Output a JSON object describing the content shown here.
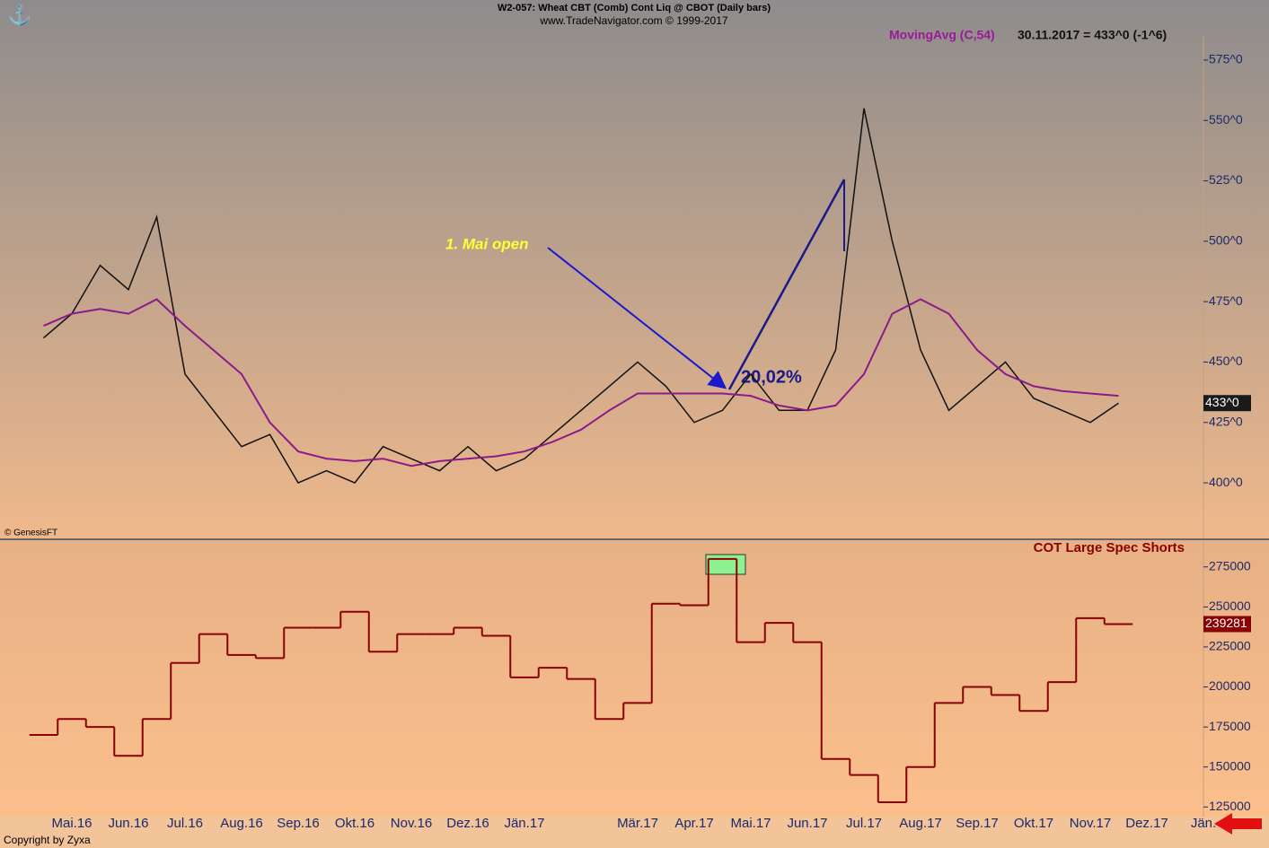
{
  "chart_data": {
    "type": "line",
    "title": "W2-057:  Wheat CBT (Comb) Cont Liq @ CBOT  (Daily bars)",
    "subtitle": "www.TradeNavigator.com © 1999-2017",
    "categories": [
      null,
      "Mai.16",
      null,
      "Jun.16",
      null,
      "Jul.16",
      null,
      "Aug.16",
      null,
      "Sep.16",
      null,
      "Okt.16",
      null,
      "Nov.16",
      null,
      "Dez.16",
      null,
      "Jän.17",
      null,
      null,
      null,
      "Mär.17",
      null,
      "Apr.17",
      null,
      "Mai.17",
      null,
      "Jun.17",
      null,
      "Jul.17",
      null,
      "Aug.17",
      null,
      "Sep.17",
      null,
      "Okt.17",
      null,
      "Nov.17",
      null,
      "Dez.17",
      null,
      "Jän."
    ],
    "panels": [
      {
        "type": "line",
        "ylim": [
          377,
          585
        ],
        "yticks": [
          {
            "value": 400,
            "label": "400^0"
          },
          {
            "value": 425,
            "label": "425^0"
          },
          {
            "value": 450,
            "label": "450^0"
          },
          {
            "value": 475,
            "label": "475^0"
          },
          {
            "value": 500,
            "label": "500^0"
          },
          {
            "value": 525,
            "label": "525^0"
          },
          {
            "value": 550,
            "label": "550^0"
          },
          {
            "value": 575,
            "label": "575^0"
          }
        ],
        "series": [
          {
            "color": "#111111",
            "values": [
              460,
              470,
              490,
              480,
              510,
              445,
              430,
              415,
              420,
              400,
              405,
              400,
              415,
              410,
              405,
              415,
              405,
              410,
              420,
              430,
              440,
              450,
              440,
              425,
              430,
              445,
              430,
              430,
              455,
              555,
              500,
              455,
              430,
              440,
              450,
              435,
              430,
              425,
              433,
              null,
              null,
              null
            ]
          },
          {
            "name": "MovingAvg (C,54)",
            "color": "#8b1a8b",
            "values": [
              465,
              470,
              472,
              470,
              476,
              465,
              455,
              445,
              425,
              413,
              410,
              409,
              410,
              407,
              409,
              410,
              411,
              413,
              417,
              422,
              430,
              437,
              437,
              437,
              437,
              436,
              432,
              430,
              432,
              445,
              470,
              476,
              470,
              455,
              445,
              440,
              438,
              437,
              436,
              null,
              null,
              null
            ]
          }
        ],
        "status_text": "30.11.2017 = 433^0 (-1^6)",
        "last_value": {
          "value": 433,
          "label": "433^0"
        },
        "annotations": [
          "1. Mai open",
          "20,02%"
        ],
        "source": "© GenesisFT"
      },
      {
        "type": "step",
        "ylim": [
          119000,
          290000
        ],
        "yticks": [
          125000,
          150000,
          175000,
          200000,
          225000,
          250000,
          275000
        ],
        "series": [
          {
            "name": "COT Large Spec Shorts",
            "color": "#8b0000",
            "values": [
              170000,
              180000,
              175000,
              157000,
              180000,
              215000,
              233000,
              220000,
              218000,
              237000,
              237000,
              247000,
              222000,
              233000,
              233000,
              237000,
              232000,
              206000,
              212000,
              205000,
              180000,
              190000,
              252000,
              251000,
              280000,
              228000,
              240000,
              228000,
              155000,
              145000,
              128000,
              150000,
              190000,
              200000,
              195000,
              185000,
              203000,
              243000,
              239281,
              null,
              null,
              null
            ]
          }
        ],
        "last_value": 239281
      }
    ],
    "copyright": "Copyright by Zyxa"
  }
}
